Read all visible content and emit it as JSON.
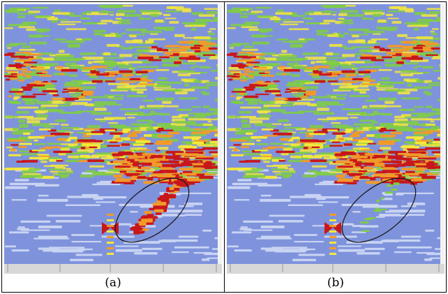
{
  "panels": [
    {
      "id": "a",
      "caption": "(a)"
    },
    {
      "id": "b",
      "caption": "(b)"
    }
  ],
  "colors": {
    "background_blue": "#7f93dc",
    "light_blue": "#c9d4f3",
    "green": "#7fcf3f",
    "yellow": "#f4e83a",
    "orange": "#f19a2a",
    "red": "#c8171b",
    "axis_gray": "#d8d8d8",
    "ellipse": "#1a1a1a"
  }
}
